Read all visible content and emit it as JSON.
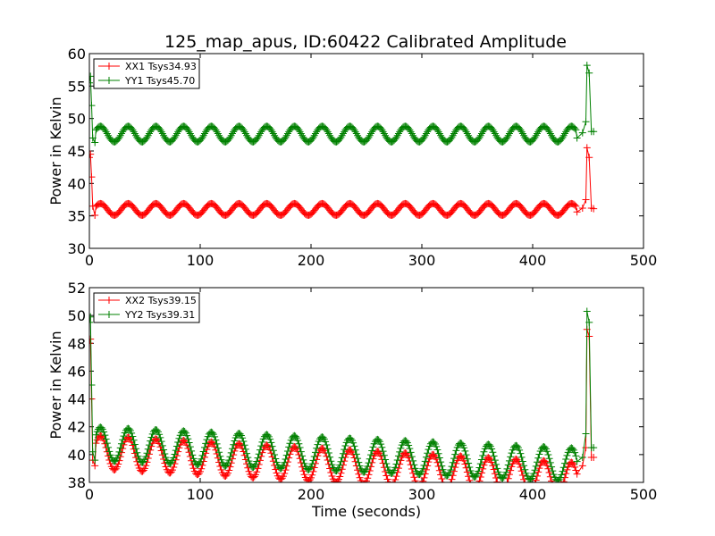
{
  "chart_data": {
    "type": "line",
    "title": "125_map_apus, ID:60422 Calibrated Amplitude",
    "xlabel": "Time (seconds)",
    "xticks": [
      "0",
      "100",
      "200",
      "300",
      "400",
      "500"
    ],
    "panels": [
      {
        "ylabel": "Power in Kelvin",
        "xlim": [
          0,
          500
        ],
        "ylim": [
          30,
          60
        ],
        "yticks": [
          "30",
          "35",
          "40",
          "45",
          "50",
          "55",
          "60"
        ],
        "legend_position": "top-left",
        "series": [
          {
            "name": "XX1 Tsys34.93",
            "color": "#ff0000",
            "baseline": 36.0,
            "amplitude": 0.9,
            "period": 25,
            "x_range": [
              0,
              440
            ],
            "start": [
              [
                0,
                44.0
              ],
              [
                1,
                44.5
              ],
              [
                2,
                41.0
              ],
              [
                3,
                36.5
              ],
              [
                5,
                35.1
              ]
            ],
            "end": [
              [
                440,
                35.6
              ],
              [
                445,
                36.2
              ],
              [
                448,
                37.5
              ],
              [
                449,
                45.5
              ],
              [
                451,
                44.0
              ],
              [
                453,
                36.2
              ],
              [
                455,
                36.1
              ]
            ]
          },
          {
            "name": "YY1 Tsys45.70",
            "color": "#008000",
            "baseline": 47.6,
            "amplitude": 1.2,
            "period": 25,
            "x_range": [
              0,
              440
            ],
            "start": [
              [
                0,
                55.5
              ],
              [
                1,
                56.5
              ],
              [
                2,
                52.0
              ],
              [
                3,
                47.0
              ],
              [
                5,
                46.3
              ]
            ],
            "end": [
              [
                440,
                47.0
              ],
              [
                445,
                47.8
              ],
              [
                448,
                49.5
              ],
              [
                449,
                58.2
              ],
              [
                451,
                57.0
              ],
              [
                453,
                48.0
              ],
              [
                455,
                48.0
              ]
            ]
          }
        ]
      },
      {
        "ylabel": "Power in Kelvin",
        "xlim": [
          0,
          500
        ],
        "ylim": [
          38,
          52
        ],
        "yticks": [
          "38",
          "40",
          "42",
          "44",
          "46",
          "48",
          "50",
          "52"
        ],
        "legend_position": "top-left",
        "series": [
          {
            "name": "XX2 Tsys39.15",
            "color": "#ff0000",
            "baseline": 40.2,
            "amplitude": 1.2,
            "period": 25,
            "drift": -0.0045,
            "x_range": [
              0,
              440
            ],
            "start": [
              [
                0,
                48.0
              ],
              [
                1,
                48.3
              ],
              [
                2,
                44.0
              ],
              [
                3,
                39.6
              ],
              [
                5,
                39.2
              ]
            ],
            "end": [
              [
                440,
                38.6
              ],
              [
                445,
                39.2
              ],
              [
                448,
                40.5
              ],
              [
                449,
                49.0
              ],
              [
                451,
                48.5
              ],
              [
                453,
                39.8
              ],
              [
                455,
                39.8
              ]
            ]
          },
          {
            "name": "YY2 Tsys39.31",
            "color": "#008000",
            "baseline": 40.8,
            "amplitude": 1.2,
            "period": 25,
            "drift": -0.0035,
            "x_range": [
              0,
              440
            ],
            "start": [
              [
                0,
                49.5
              ],
              [
                1,
                49.9
              ],
              [
                2,
                45.0
              ],
              [
                3,
                40.2
              ],
              [
                5,
                39.6
              ]
            ],
            "end": [
              [
                440,
                39.5
              ],
              [
                445,
                39.8
              ],
              [
                448,
                41.5
              ],
              [
                449,
                50.3
              ],
              [
                451,
                49.5
              ],
              [
                453,
                40.5
              ],
              [
                455,
                40.5
              ]
            ]
          }
        ]
      }
    ]
  }
}
